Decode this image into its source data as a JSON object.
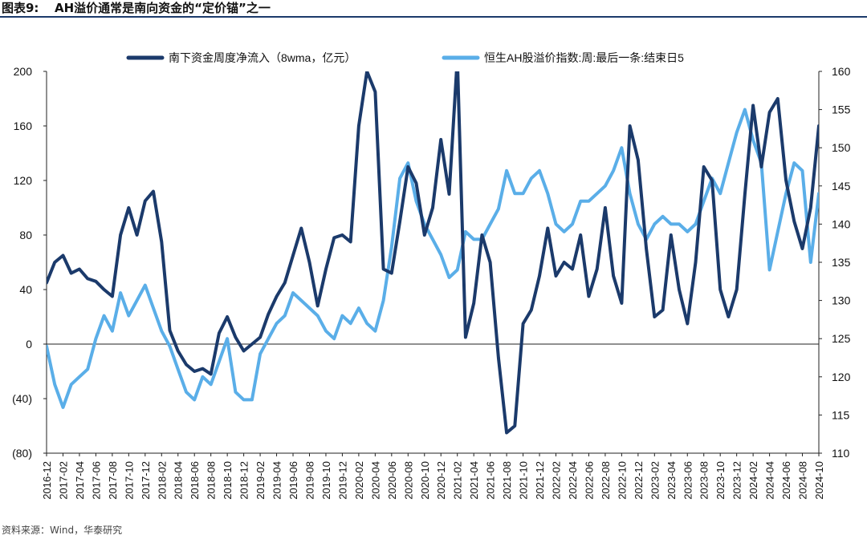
{
  "figure": {
    "number": "图表9:",
    "title": "AH溢价通常是南向资金的“定价锚”之一",
    "source": "资料来源：Wind，华泰研究"
  },
  "chart_data": {
    "type": "line",
    "legend_placement": "top",
    "grid": false,
    "x_tick_labels": [
      "2016-12",
      "2017-02",
      "2017-04",
      "2017-06",
      "2017-08",
      "2017-10",
      "2017-12",
      "2018-02",
      "2018-04",
      "2018-06",
      "2018-08",
      "2018-10",
      "2018-12",
      "2019-02",
      "2019-04",
      "2019-06",
      "2019-08",
      "2019-10",
      "2019-12",
      "2020-02",
      "2020-04",
      "2020-06",
      "2020-08",
      "2020-10",
      "2020-12",
      "2021-02",
      "2021-04",
      "2021-06",
      "2021-08",
      "2021-10",
      "2021-12",
      "2022-02",
      "2022-04",
      "2022-06",
      "2022-08",
      "2022-10",
      "2022-12",
      "2023-02",
      "2023-04",
      "2023-06",
      "2023-08",
      "2023-10",
      "2023-12",
      "2024-02",
      "2024-04",
      "2024-06",
      "2024-08",
      "2024-10"
    ],
    "y_left": {
      "ylim": [
        -80,
        200
      ],
      "ticks": [
        "(80)",
        "(40)",
        "0",
        "40",
        "80",
        "120",
        "160",
        "200"
      ],
      "tick_values": [
        -80,
        -40,
        0,
        40,
        80,
        120,
        160,
        200
      ]
    },
    "y_right": {
      "ylim": [
        110,
        160
      ],
      "ticks": [
        "110",
        "115",
        "120",
        "125",
        "130",
        "135",
        "140",
        "145",
        "150",
        "155",
        "160"
      ],
      "tick_values": [
        110,
        115,
        120,
        125,
        130,
        135,
        140,
        145,
        150,
        155,
        160
      ]
    },
    "series": [
      {
        "name": "南下资金周度净流入（8wma，亿元）",
        "axis": "left",
        "color": "#1b3a6b",
        "x": [
          "2016-12",
          "2017-01",
          "2017-02",
          "2017-03",
          "2017-04",
          "2017-05",
          "2017-06",
          "2017-07",
          "2017-08",
          "2017-09",
          "2017-10",
          "2017-11",
          "2017-12",
          "2018-01",
          "2018-02",
          "2018-03",
          "2018-04",
          "2018-05",
          "2018-06",
          "2018-07",
          "2018-08",
          "2018-09",
          "2018-10",
          "2018-11",
          "2018-12",
          "2019-01",
          "2019-02",
          "2019-03",
          "2019-04",
          "2019-05",
          "2019-06",
          "2019-07",
          "2019-08",
          "2019-09",
          "2019-10",
          "2019-11",
          "2019-12",
          "2020-01",
          "2020-02",
          "2020-03",
          "2020-04",
          "2020-05",
          "2020-06",
          "2020-07",
          "2020-08",
          "2020-09",
          "2020-10",
          "2020-11",
          "2020-12",
          "2021-01",
          "2021-02",
          "2021-03",
          "2021-04",
          "2021-05",
          "2021-06",
          "2021-07",
          "2021-08",
          "2021-09",
          "2021-10",
          "2021-11",
          "2021-12",
          "2022-01",
          "2022-02",
          "2022-03",
          "2022-04",
          "2022-05",
          "2022-06",
          "2022-07",
          "2022-08",
          "2022-09",
          "2022-10",
          "2022-11",
          "2022-12",
          "2023-01",
          "2023-02",
          "2023-03",
          "2023-04",
          "2023-05",
          "2023-06",
          "2023-07",
          "2023-08",
          "2023-09",
          "2023-10",
          "2023-11",
          "2023-12",
          "2024-01",
          "2024-02",
          "2024-03",
          "2024-04",
          "2024-05",
          "2024-06",
          "2024-07",
          "2024-08",
          "2024-09",
          "2024-10"
        ],
        "values": [
          45,
          60,
          65,
          52,
          55,
          48,
          46,
          40,
          35,
          80,
          100,
          80,
          105,
          112,
          75,
          10,
          -5,
          -15,
          -20,
          -18,
          -22,
          8,
          20,
          5,
          -5,
          0,
          5,
          22,
          35,
          45,
          65,
          85,
          60,
          28,
          55,
          78,
          80,
          75,
          160,
          200,
          185,
          55,
          52,
          90,
          130,
          118,
          80,
          100,
          150,
          110,
          210,
          5,
          30,
          80,
          60,
          -10,
          -65,
          -60,
          15,
          25,
          50,
          85,
          50,
          60,
          55,
          80,
          35,
          55,
          100,
          50,
          30,
          160,
          135,
          70,
          20,
          25,
          80,
          40,
          15,
          60,
          130,
          120,
          40,
          20,
          40,
          110,
          175,
          130,
          170,
          180,
          120,
          90,
          70,
          100,
          160
        ]
      },
      {
        "name": "恒生AH股溢价指数:周:最后一条:结束日5",
        "axis": "right",
        "color": "#5aaee8",
        "x": [
          "2016-12",
          "2017-01",
          "2017-02",
          "2017-03",
          "2017-04",
          "2017-05",
          "2017-06",
          "2017-07",
          "2017-08",
          "2017-09",
          "2017-10",
          "2017-11",
          "2017-12",
          "2018-01",
          "2018-02",
          "2018-03",
          "2018-04",
          "2018-05",
          "2018-06",
          "2018-07",
          "2018-08",
          "2018-09",
          "2018-10",
          "2018-11",
          "2018-12",
          "2019-01",
          "2019-02",
          "2019-03",
          "2019-04",
          "2019-05",
          "2019-06",
          "2019-07",
          "2019-08",
          "2019-09",
          "2019-10",
          "2019-11",
          "2019-12",
          "2020-01",
          "2020-02",
          "2020-03",
          "2020-04",
          "2020-05",
          "2020-06",
          "2020-07",
          "2020-08",
          "2020-09",
          "2020-10",
          "2020-11",
          "2020-12",
          "2021-01",
          "2021-02",
          "2021-03",
          "2021-04",
          "2021-05",
          "2021-06",
          "2021-07",
          "2021-08",
          "2021-09",
          "2021-10",
          "2021-11",
          "2021-12",
          "2022-01",
          "2022-02",
          "2022-03",
          "2022-04",
          "2022-05",
          "2022-06",
          "2022-07",
          "2022-08",
          "2022-09",
          "2022-10",
          "2022-11",
          "2022-12",
          "2023-01",
          "2023-02",
          "2023-03",
          "2023-04",
          "2023-05",
          "2023-06",
          "2023-07",
          "2023-08",
          "2023-09",
          "2023-10",
          "2023-11",
          "2023-12",
          "2024-01",
          "2024-02",
          "2024-03",
          "2024-04",
          "2024-05",
          "2024-06",
          "2024-07",
          "2024-08",
          "2024-09",
          "2024-10"
        ],
        "values": [
          124,
          119,
          116,
          119,
          120,
          121,
          125,
          128,
          126,
          131,
          128,
          130,
          132,
          129,
          126,
          124,
          121,
          118,
          117,
          120,
          119,
          122,
          125,
          118,
          117,
          117,
          123,
          125,
          127,
          128,
          131,
          130,
          129,
          128,
          126,
          125,
          128,
          127,
          129,
          127,
          126,
          130,
          137,
          146,
          148,
          143,
          140,
          138,
          136,
          133,
          134,
          139,
          138,
          138,
          140,
          142,
          147,
          144,
          144,
          146,
          147,
          144,
          140,
          139,
          140,
          143,
          143,
          144,
          145,
          147,
          150,
          144,
          140,
          138,
          140,
          141,
          140,
          140,
          139,
          140,
          143,
          146,
          144,
          148,
          152,
          155,
          151,
          148,
          134,
          139,
          144,
          148,
          147,
          135,
          144
        ]
      }
    ]
  }
}
